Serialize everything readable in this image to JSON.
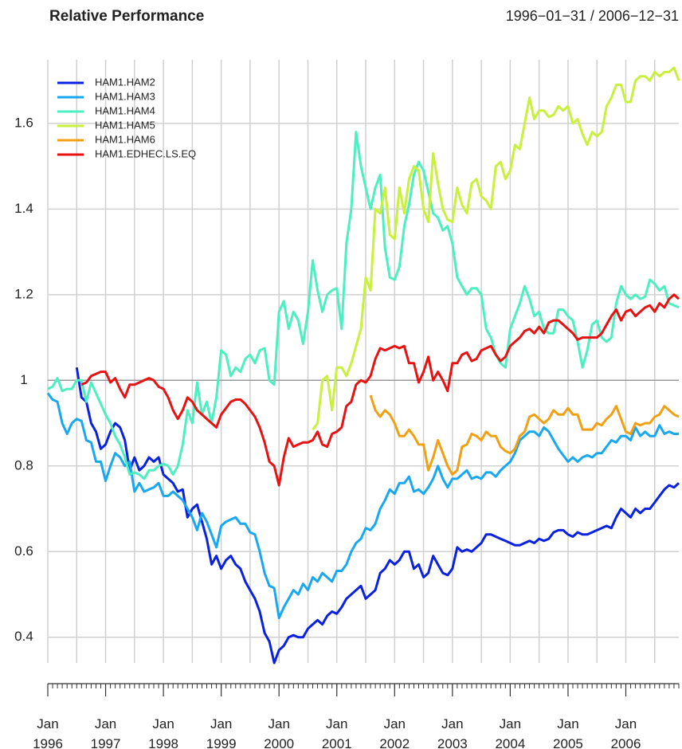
{
  "chart_data": {
    "type": "line",
    "title": "Relative Performance",
    "subtitle": "1996−01−31 / 2006−12−31",
    "x": [
      "1996-01",
      "1996-02",
      "1996-03",
      "1996-04",
      "1996-05",
      "1996-06",
      "1996-07",
      "1996-08",
      "1996-09",
      "1996-10",
      "1996-11",
      "1996-12",
      "1997-01",
      "1997-02",
      "1997-03",
      "1997-04",
      "1997-05",
      "1997-06",
      "1997-07",
      "1997-08",
      "1997-09",
      "1997-10",
      "1997-11",
      "1997-12",
      "1998-01",
      "1998-02",
      "1998-03",
      "1998-04",
      "1998-05",
      "1998-06",
      "1998-07",
      "1998-08",
      "1998-09",
      "1998-10",
      "1998-11",
      "1998-12",
      "1999-01",
      "1999-02",
      "1999-03",
      "1999-04",
      "1999-05",
      "1999-06",
      "1999-07",
      "1999-08",
      "1999-09",
      "1999-10",
      "1999-11",
      "1999-12",
      "2000-01",
      "2000-02",
      "2000-03",
      "2000-04",
      "2000-05",
      "2000-06",
      "2000-07",
      "2000-08",
      "2000-09",
      "2000-10",
      "2000-11",
      "2000-12",
      "2001-01",
      "2001-02",
      "2001-03",
      "2001-04",
      "2001-05",
      "2001-06",
      "2001-07",
      "2001-08",
      "2001-09",
      "2001-10",
      "2001-11",
      "2001-12",
      "2002-01",
      "2002-02",
      "2002-03",
      "2002-04",
      "2002-05",
      "2002-06",
      "2002-07",
      "2002-08",
      "2002-09",
      "2002-10",
      "2002-11",
      "2002-12",
      "2003-01",
      "2003-02",
      "2003-03",
      "2003-04",
      "2003-05",
      "2003-06",
      "2003-07",
      "2003-08",
      "2003-09",
      "2003-10",
      "2003-11",
      "2003-12",
      "2004-01",
      "2004-02",
      "2004-03",
      "2004-04",
      "2004-05",
      "2004-06",
      "2004-07",
      "2004-08",
      "2004-09",
      "2004-10",
      "2004-11",
      "2004-12",
      "2005-01",
      "2005-02",
      "2005-03",
      "2005-04",
      "2005-05",
      "2005-06",
      "2005-07",
      "2005-08",
      "2005-09",
      "2005-10",
      "2005-11",
      "2005-12",
      "2006-01",
      "2006-02",
      "2006-03",
      "2006-04",
      "2006-05",
      "2006-06",
      "2006-07",
      "2006-08",
      "2006-09",
      "2006-10",
      "2006-11",
      "2006-12"
    ],
    "series": [
      {
        "name": "HAM1.HAM2",
        "color": "#0a22e0",
        "values": [
          null,
          null,
          null,
          null,
          null,
          null,
          1.03,
          0.96,
          0.95,
          0.9,
          0.88,
          0.84,
          0.85,
          0.88,
          0.9,
          0.89,
          0.86,
          0.79,
          0.82,
          0.79,
          0.8,
          0.82,
          0.81,
          0.82,
          0.78,
          0.77,
          0.76,
          0.74,
          0.745,
          0.68,
          0.7,
          0.71,
          0.67,
          0.63,
          0.57,
          0.59,
          0.56,
          0.58,
          0.59,
          0.57,
          0.56,
          0.53,
          0.51,
          0.49,
          0.46,
          0.41,
          0.39,
          0.34,
          0.37,
          0.38,
          0.4,
          0.405,
          0.4,
          0.4,
          0.42,
          0.43,
          0.44,
          0.43,
          0.45,
          0.46,
          0.455,
          0.47,
          0.49,
          0.5,
          0.51,
          0.52,
          0.49,
          0.5,
          0.51,
          0.55,
          0.56,
          0.58,
          0.57,
          0.58,
          0.6,
          0.6,
          0.56,
          0.57,
          0.54,
          0.55,
          0.59,
          0.57,
          0.55,
          0.545,
          0.56,
          0.61,
          0.6,
          0.605,
          0.6,
          0.61,
          0.62,
          0.64,
          0.64,
          0.635,
          0.63,
          0.625,
          0.62,
          0.615,
          0.615,
          0.62,
          0.625,
          0.62,
          0.63,
          0.625,
          0.63,
          0.645,
          0.65,
          0.65,
          0.64,
          0.635,
          0.645,
          0.64,
          0.64,
          0.645,
          0.65,
          0.655,
          0.66,
          0.655,
          0.68,
          0.7,
          0.69,
          0.68,
          0.7,
          0.69,
          0.7,
          0.7,
          0.715,
          0.73,
          0.745,
          0.755,
          0.75,
          0.76
        ]
      },
      {
        "name": "HAM1.HAM3",
        "color": "#18a8f0",
        "values": [
          0.97,
          0.955,
          0.95,
          0.9,
          0.875,
          0.9,
          0.91,
          0.905,
          0.86,
          0.855,
          0.81,
          0.81,
          0.765,
          0.8,
          0.83,
          0.82,
          0.8,
          0.81,
          0.74,
          0.76,
          0.74,
          0.745,
          0.75,
          0.76,
          0.73,
          0.73,
          0.74,
          0.73,
          0.72,
          0.7,
          0.68,
          0.65,
          0.69,
          0.67,
          0.64,
          0.61,
          0.66,
          0.67,
          0.675,
          0.68,
          0.665,
          0.665,
          0.645,
          0.64,
          0.6,
          0.55,
          0.52,
          0.515,
          0.445,
          0.47,
          0.49,
          0.51,
          0.5,
          0.525,
          0.51,
          0.54,
          0.53,
          0.55,
          0.54,
          0.53,
          0.555,
          0.555,
          0.57,
          0.6,
          0.62,
          0.63,
          0.655,
          0.65,
          0.665,
          0.7,
          0.72,
          0.745,
          0.735,
          0.76,
          0.76,
          0.775,
          0.74,
          0.745,
          0.735,
          0.75,
          0.77,
          0.8,
          0.77,
          0.75,
          0.77,
          0.77,
          0.78,
          0.79,
          0.77,
          0.775,
          0.77,
          0.785,
          0.785,
          0.775,
          0.79,
          0.8,
          0.81,
          0.83,
          0.86,
          0.87,
          0.88,
          0.88,
          0.87,
          0.89,
          0.88,
          0.86,
          0.84,
          0.825,
          0.81,
          0.82,
          0.81,
          0.82,
          0.825,
          0.82,
          0.83,
          0.83,
          0.845,
          0.86,
          0.855,
          0.87,
          0.87,
          0.86,
          0.89,
          0.87,
          0.88,
          0.87,
          0.87,
          0.895,
          0.875,
          0.88,
          0.875,
          0.875
        ]
      },
      {
        "name": "HAM1.HAM4",
        "color": "#4cf0c0",
        "values": [
          0.98,
          0.985,
          1.005,
          0.975,
          0.98,
          0.98,
          1.0,
          1.0,
          0.95,
          0.995,
          0.97,
          0.945,
          0.92,
          0.9,
          0.87,
          0.85,
          0.82,
          0.78,
          0.785,
          0.78,
          0.77,
          0.79,
          0.79,
          0.8,
          0.805,
          0.8,
          0.78,
          0.8,
          0.85,
          0.93,
          0.9,
          0.995,
          0.92,
          0.95,
          0.9,
          0.96,
          1.07,
          1.06,
          1.01,
          1.03,
          1.02,
          1.05,
          1.06,
          1.04,
          1.07,
          1.075,
          1.0,
          0.99,
          1.16,
          1.185,
          1.12,
          1.16,
          1.14,
          1.085,
          1.16,
          1.28,
          1.21,
          1.16,
          1.2,
          1.21,
          1.215,
          1.12,
          1.32,
          1.4,
          1.58,
          1.5,
          1.45,
          1.4,
          1.45,
          1.48,
          1.31,
          1.24,
          1.235,
          1.265,
          1.36,
          1.41,
          1.48,
          1.51,
          1.49,
          1.44,
          1.39,
          1.38,
          1.35,
          1.36,
          1.32,
          1.24,
          1.22,
          1.2,
          1.215,
          1.215,
          1.2,
          1.12,
          1.1,
          1.06,
          1.04,
          1.03,
          1.12,
          1.15,
          1.18,
          1.22,
          1.19,
          1.15,
          1.16,
          1.12,
          1.11,
          1.11,
          1.165,
          1.165,
          1.15,
          1.14,
          1.09,
          1.03,
          1.07,
          1.13,
          1.14,
          1.1,
          1.09,
          1.1,
          1.18,
          1.22,
          1.2,
          1.19,
          1.2,
          1.19,
          1.195,
          1.235,
          1.225,
          1.21,
          1.22,
          1.18,
          1.175,
          1.17
        ]
      },
      {
        "name": "HAM1.HAM5",
        "color": "#c8f03c",
        "values": [
          null,
          null,
          null,
          null,
          null,
          null,
          null,
          null,
          null,
          null,
          null,
          null,
          null,
          null,
          null,
          null,
          null,
          null,
          null,
          null,
          null,
          null,
          null,
          null,
          null,
          null,
          null,
          null,
          null,
          null,
          null,
          null,
          null,
          null,
          null,
          null,
          null,
          null,
          null,
          null,
          null,
          null,
          null,
          null,
          null,
          null,
          null,
          null,
          null,
          null,
          null,
          null,
          null,
          null,
          null,
          0.885,
          0.9,
          1.0,
          1.01,
          0.93,
          1.03,
          1.03,
          1.01,
          1.04,
          1.08,
          1.12,
          1.24,
          1.21,
          1.4,
          1.39,
          1.45,
          1.34,
          1.33,
          1.45,
          1.39,
          1.47,
          1.5,
          1.49,
          1.4,
          1.37,
          1.53,
          1.46,
          1.4,
          1.375,
          1.37,
          1.45,
          1.41,
          1.39,
          1.46,
          1.47,
          1.43,
          1.42,
          1.4,
          1.5,
          1.51,
          1.47,
          1.49,
          1.55,
          1.54,
          1.6,
          1.66,
          1.61,
          1.63,
          1.63,
          1.615,
          1.62,
          1.64,
          1.63,
          1.64,
          1.6,
          1.61,
          1.575,
          1.55,
          1.58,
          1.57,
          1.58,
          1.64,
          1.66,
          1.69,
          1.69,
          1.65,
          1.65,
          1.7,
          1.71,
          1.71,
          1.7,
          1.72,
          1.71,
          1.72,
          1.72,
          1.73,
          1.7
        ]
      },
      {
        "name": "HAM1.HAM6",
        "color": "#f0a012",
        "values": [
          null,
          null,
          null,
          null,
          null,
          null,
          null,
          null,
          null,
          null,
          null,
          null,
          null,
          null,
          null,
          null,
          null,
          null,
          null,
          null,
          null,
          null,
          null,
          null,
          null,
          null,
          null,
          null,
          null,
          null,
          null,
          null,
          null,
          null,
          null,
          null,
          null,
          null,
          null,
          null,
          null,
          null,
          null,
          null,
          null,
          null,
          null,
          null,
          null,
          null,
          null,
          null,
          null,
          null,
          null,
          null,
          null,
          null,
          null,
          null,
          null,
          null,
          null,
          null,
          null,
          null,
          null,
          0.965,
          0.93,
          0.915,
          0.93,
          0.92,
          0.9,
          0.87,
          0.87,
          0.885,
          0.87,
          0.85,
          0.85,
          0.79,
          0.82,
          0.86,
          0.83,
          0.8,
          0.78,
          0.79,
          0.845,
          0.85,
          0.875,
          0.87,
          0.86,
          0.88,
          0.87,
          0.87,
          0.845,
          0.835,
          0.83,
          0.84,
          0.87,
          0.88,
          0.915,
          0.92,
          0.91,
          0.9,
          0.91,
          0.93,
          0.92,
          0.92,
          0.935,
          0.92,
          0.92,
          0.885,
          0.885,
          0.885,
          0.9,
          0.895,
          0.91,
          0.92,
          0.94,
          0.91,
          0.88,
          0.875,
          0.9,
          0.895,
          0.9,
          0.9,
          0.915,
          0.92,
          0.94,
          0.93,
          0.92,
          0.915
        ]
      },
      {
        "name": "HAM1.EDHEC.LS.EQ",
        "color": "#e81212",
        "values": [
          null,
          null,
          null,
          null,
          null,
          null,
          null,
          0.99,
          0.995,
          1.01,
          1.015,
          1.02,
          1.02,
          0.995,
          1.005,
          0.98,
          0.96,
          0.99,
          0.99,
          0.995,
          1.0,
          1.005,
          1.0,
          0.985,
          0.98,
          0.96,
          0.93,
          0.91,
          0.93,
          0.96,
          0.95,
          0.93,
          0.92,
          0.91,
          0.9,
          0.89,
          0.92,
          0.935,
          0.95,
          0.955,
          0.955,
          0.945,
          0.93,
          0.915,
          0.89,
          0.855,
          0.81,
          0.8,
          0.755,
          0.82,
          0.865,
          0.845,
          0.85,
          0.855,
          0.855,
          0.86,
          0.88,
          0.85,
          0.845,
          0.875,
          0.88,
          0.89,
          0.94,
          0.95,
          0.99,
          1.0,
          0.995,
          1.01,
          1.05,
          1.075,
          1.07,
          1.075,
          1.08,
          1.075,
          1.08,
          1.04,
          1.04,
          0.995,
          1.02,
          1.055,
          1.0,
          1.02,
          1.0,
          0.975,
          1.04,
          1.04,
          1.06,
          1.065,
          1.045,
          1.05,
          1.07,
          1.075,
          1.08,
          1.06,
          1.045,
          1.055,
          1.08,
          1.09,
          1.1,
          1.115,
          1.12,
          1.11,
          1.125,
          1.11,
          1.135,
          1.14,
          1.14,
          1.13,
          1.12,
          1.11,
          1.095,
          1.1,
          1.1,
          1.1,
          1.1,
          1.11,
          1.13,
          1.15,
          1.165,
          1.14,
          1.16,
          1.165,
          1.15,
          1.16,
          1.17,
          1.175,
          1.16,
          1.18,
          1.17,
          1.19,
          1.2,
          1.19
        ]
      }
    ],
    "ylim": [
      0.34,
      1.73
    ],
    "yticks": [
      0.4,
      0.6,
      0.8,
      1.0,
      1.2,
      1.4,
      1.6
    ],
    "xticks": [
      {
        "value": "1996-01",
        "label": "Jan 1996"
      },
      {
        "value": "1997-01",
        "label": "Jan 1997"
      },
      {
        "value": "1998-01",
        "label": "Jan 1998"
      },
      {
        "value": "1999-01",
        "label": "Jan 1999"
      },
      {
        "value": "2000-01",
        "label": "Jan 2000"
      },
      {
        "value": "2001-01",
        "label": "Jan 2001"
      },
      {
        "value": "2002-01",
        "label": "Jan 2002"
      },
      {
        "value": "2003-01",
        "label": "Jan 2003"
      },
      {
        "value": "2004-01",
        "label": "Jan 2004"
      },
      {
        "value": "2005-01",
        "label": "Jan 2005"
      },
      {
        "value": "2006-01",
        "label": "Jan 2006"
      }
    ],
    "grid": true,
    "legend": "topleft"
  }
}
